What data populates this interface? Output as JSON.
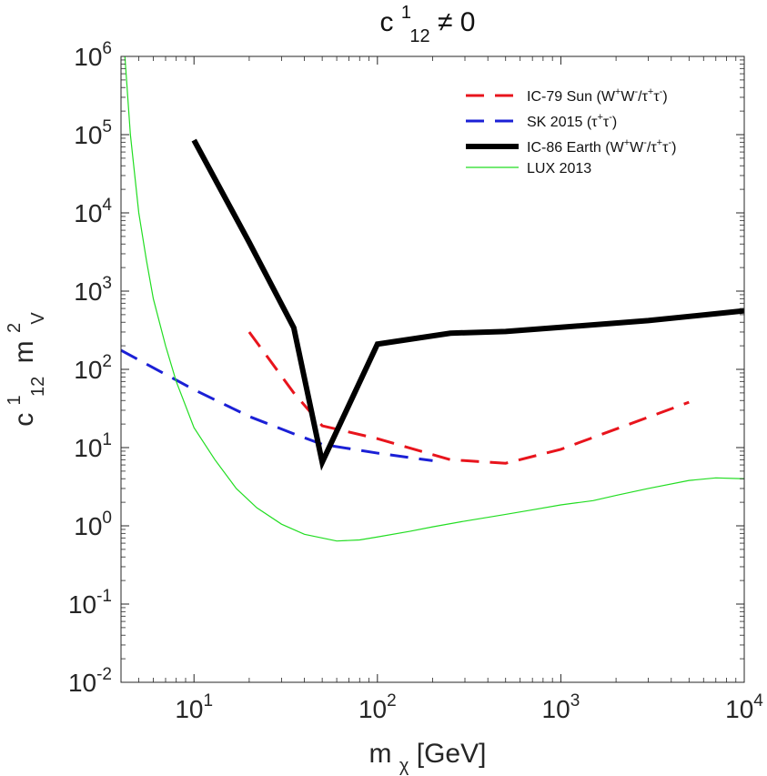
{
  "chart_data": {
    "type": "line",
    "title": {
      "base": "c",
      "sup": "1",
      "sub": "12",
      "rest": " ≠ 0"
    },
    "xlabel": {
      "base": "m",
      "sub": "χ",
      "rest": " [GeV]"
    },
    "ylabel": {
      "c_base": "c",
      "c_sup": "1",
      "c_sub": "12",
      "m_base": "m",
      "m_sup": "2",
      "m_sub": "V"
    },
    "x_scale": "log",
    "y_scale": "log",
    "xlim": [
      4,
      10000
    ],
    "ylim": [
      0.01,
      1000000
    ],
    "x_ticks": [
      {
        "value": 10,
        "base": "10",
        "exp": "1"
      },
      {
        "value": 100,
        "base": "10",
        "exp": "2"
      },
      {
        "value": 1000,
        "base": "10",
        "exp": "3"
      },
      {
        "value": 10000,
        "base": "10",
        "exp": "4"
      }
    ],
    "y_ticks": [
      {
        "value": 0.01,
        "base": "10",
        "exp": "-2"
      },
      {
        "value": 0.1,
        "base": "10",
        "exp": "-1"
      },
      {
        "value": 1,
        "base": "10",
        "exp": "0"
      },
      {
        "value": 10,
        "base": "10",
        "exp": "1"
      },
      {
        "value": 100,
        "base": "10",
        "exp": "2"
      },
      {
        "value": 1000,
        "base": "10",
        "exp": "3"
      },
      {
        "value": 10000,
        "base": "10",
        "exp": "4"
      },
      {
        "value": 100000,
        "base": "10",
        "exp": "5"
      },
      {
        "value": 1000000,
        "base": "10",
        "exp": "6"
      }
    ],
    "legend_position": "top-right",
    "series": [
      {
        "name": "IC-79 Sun (W⁺W⁻/τ⁺τ⁻)",
        "color": "#e8141c",
        "style": "dashed",
        "weight": "medium",
        "x": [
          20,
          35,
          50,
          100,
          250,
          500,
          1000,
          5000
        ],
        "y": [
          300,
          50,
          19,
          13,
          7,
          6.3,
          9.5,
          38
        ]
      },
      {
        "name": "SK 2015 (τ⁺τ⁻)",
        "color": "#1b20d6",
        "style": "dashed",
        "weight": "medium",
        "x": [
          4,
          10,
          20,
          35,
          50,
          100,
          200
        ],
        "y": [
          175,
          55,
          25,
          15,
          11,
          8.5,
          6.8
        ]
      },
      {
        "name": "IC-86 Earth (W⁺W⁻/τ⁺τ⁻)",
        "color": "#000000",
        "style": "solid",
        "weight": "heavy",
        "x": [
          10,
          20,
          35,
          50,
          100,
          250,
          500,
          1000,
          3000,
          10000
        ],
        "y": [
          85000,
          4200,
          340,
          6.5,
          210,
          290,
          305,
          345,
          420,
          560
        ]
      },
      {
        "name": "LUX 2013",
        "color": "#22dd22",
        "style": "solid",
        "weight": "thin",
        "x": [
          4.2,
          4.5,
          5,
          5.5,
          6,
          7,
          8,
          10,
          13,
          17,
          22,
          30,
          40,
          60,
          80,
          100,
          150,
          200,
          300,
          500,
          700,
          1000,
          1500,
          2000,
          3000,
          5000,
          7000,
          10000
        ],
        "y": [
          1000000,
          100000,
          10000,
          2500,
          800,
          200,
          70,
          18,
          7,
          3,
          1.7,
          1.05,
          0.78,
          0.64,
          0.66,
          0.72,
          0.85,
          0.97,
          1.15,
          1.4,
          1.6,
          1.85,
          2.1,
          2.45,
          3.0,
          3.8,
          4.1,
          4.0
        ]
      }
    ]
  },
  "legend": {
    "entries": [
      {
        "series": 0,
        "prefix": "IC-79 Sun (W",
        "s1": "+",
        "mid": "W",
        "s2": "-",
        "slash": "/τ",
        "s3": "+",
        "tau": "τ",
        "s4": "-",
        "close": ")"
      },
      {
        "series": 1,
        "prefix": "SK 2015 (τ",
        "s1": "+",
        "mid": "τ",
        "s2": "-",
        "close": ")"
      },
      {
        "series": 2,
        "prefix": "IC-86 Earth (W",
        "s1": "+",
        "mid": "W",
        "s2": "-",
        "slash": "/τ",
        "s3": "+",
        "tau": "τ",
        "s4": "-",
        "close": ")"
      },
      {
        "series": 3,
        "text": "LUX 2013"
      }
    ]
  }
}
